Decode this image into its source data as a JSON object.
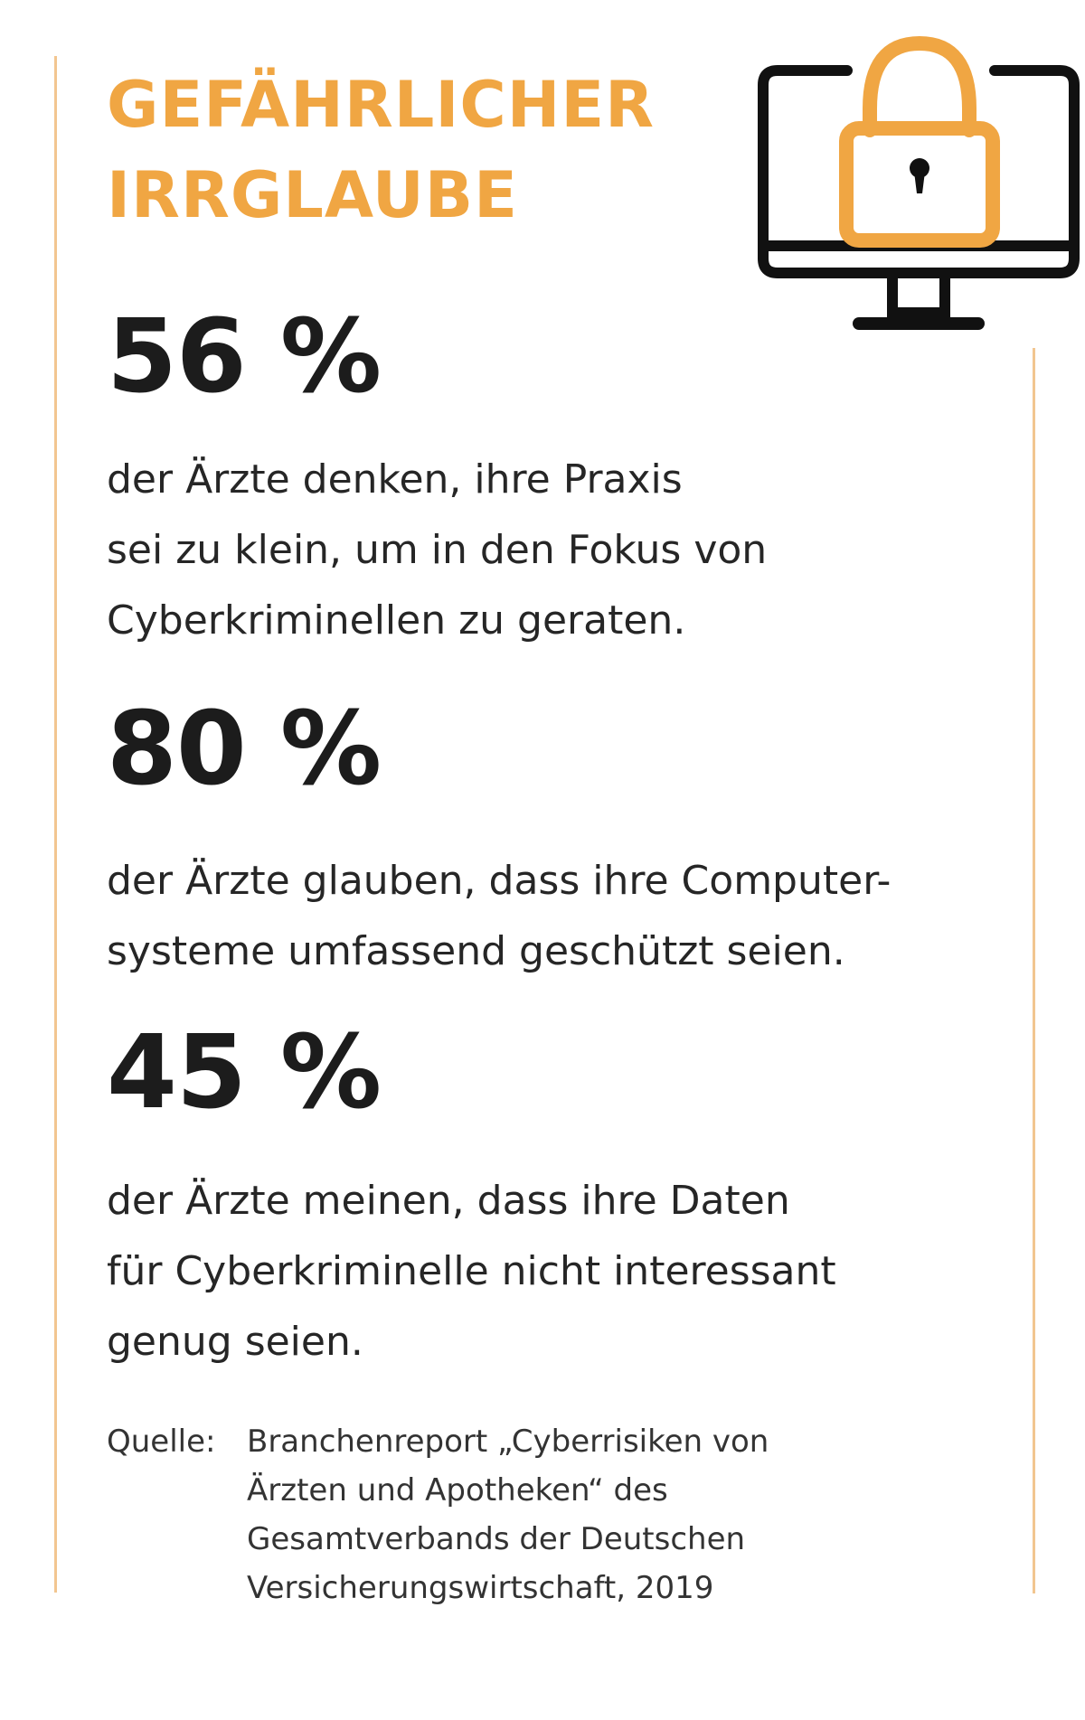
{
  "title": {
    "line1": "GEFÄHRLICHER",
    "line2": "IRRGLAUBE"
  },
  "colors": {
    "accent": "#f0a643",
    "frame": "#f2c690",
    "text": "#222222",
    "monitor": "#111111"
  },
  "icon": "monitor-with-padlock-icon",
  "stats": [
    {
      "value": "56 %",
      "text": "der Ärzte denken, ihre Praxis\nsei zu klein, um in den Fokus von\nCyberkriminellen zu geraten."
    },
    {
      "value": "80 %",
      "text": "der Ärzte glauben, dass ihre Computer-\nsysteme umfassend geschützt seien."
    },
    {
      "value": "45 %",
      "text": "der Ärzte meinen, dass ihre Daten\nfür Cyberkriminelle nicht interessant\ngenug seien."
    }
  ],
  "source": {
    "label": "Quelle:",
    "text": "Branchenreport „Cyberrisiken von\nÄrzten und Apotheken“ des\nGesamtverbands der Deutschen\nVersicherungswirtschaft, 2019"
  }
}
